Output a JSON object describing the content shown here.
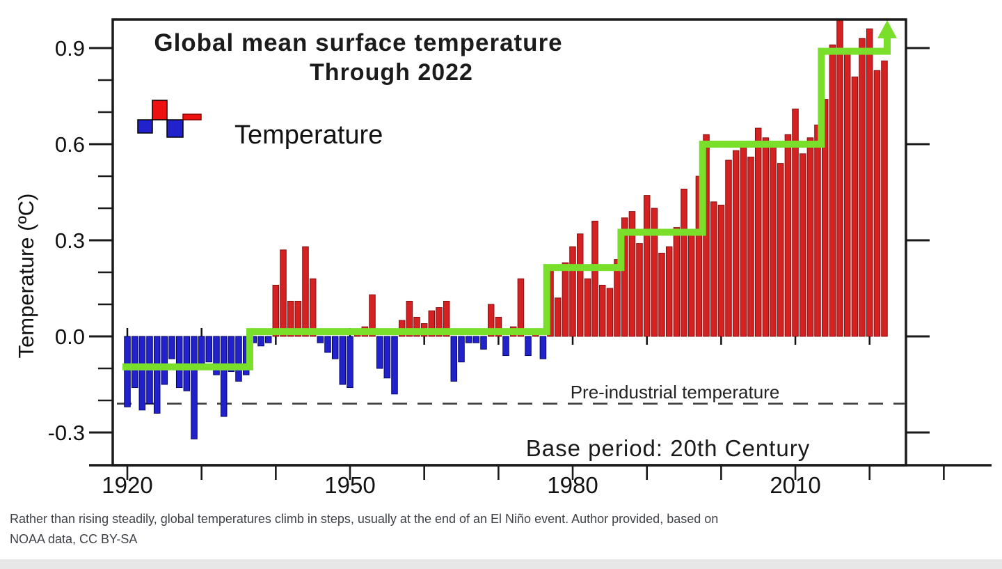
{
  "header": {
    "title_line1": "Global mean surface temperature",
    "title_line2": "Through 2022"
  },
  "legend": {
    "label": "Temperature"
  },
  "axes": {
    "y": {
      "axis_label": "Temperature  (ºC)",
      "major_ticks": [
        {
          "value": 0.9,
          "label": "0.9"
        },
        {
          "value": 0.6,
          "label": "0.6"
        },
        {
          "value": 0.3,
          "label": "0.3"
        },
        {
          "value": 0.0,
          "label": "0.0"
        },
        {
          "value": -0.3,
          "label": "-0.3"
        }
      ],
      "minor_tick_values": [
        0.8,
        0.7,
        0.5,
        0.4,
        0.2,
        0.1,
        -0.1,
        -0.2
      ]
    },
    "x": {
      "major_ticks": [
        {
          "value": 1920,
          "label": "1920"
        },
        {
          "value": 1950,
          "label": "1950"
        },
        {
          "value": 1980,
          "label": "1980"
        },
        {
          "value": 2010,
          "label": "2010"
        }
      ],
      "minor_tick_values": [
        1920,
        1930,
        1940,
        1950,
        1960,
        1970,
        1980,
        1990,
        2000,
        2010,
        2020,
        2030
      ],
      "zero_line_decade_ticks": [
        1920,
        1930,
        1940,
        1950,
        1960,
        1970,
        1980,
        1990,
        2000,
        2010,
        2020
      ]
    }
  },
  "annotations": {
    "pre_industrial": "Pre-industrial temperature",
    "base_period": "Base period: 20th Century"
  },
  "caption": {
    "line1": "Rather than rising steadily, global temperatures climb in steps, usually at the end of an El Niño event. Author provided, based on",
    "line2": "NOAA data, CC BY-SA"
  },
  "colors": {
    "positive_bar": "#d42222",
    "positive_bar_edge": "#7a0c0c",
    "negative_bar": "#2222cc",
    "negative_bar_edge": "#00005a",
    "step_line": "#79df2b",
    "dashed_line": "#3c3c3c",
    "axis": "#1a1a1a",
    "caption_text": "#3e4247",
    "bottom_strip": "#e7e7e7"
  },
  "chart_data": {
    "type": "bar",
    "title": "Global mean surface temperature Through 2022",
    "xlabel": "",
    "ylabel": "Temperature (ºC)",
    "x_start_year": 1920,
    "x_end_year": 2022,
    "ylim": [
      -0.4,
      0.985
    ],
    "xlim": [
      1918,
      2025
    ],
    "grid": false,
    "legend_position": "upper-left",
    "values": [
      -0.22,
      -0.16,
      -0.23,
      -0.21,
      -0.24,
      -0.15,
      -0.07,
      -0.16,
      -0.17,
      -0.32,
      -0.09,
      -0.08,
      -0.12,
      -0.25,
      -0.11,
      -0.14,
      -0.12,
      -0.02,
      -0.03,
      -0.02,
      0.16,
      0.27,
      0.11,
      0.11,
      0.28,
      0.18,
      -0.02,
      -0.05,
      -0.07,
      -0.15,
      -0.16,
      0.01,
      0.03,
      0.13,
      -0.1,
      -0.13,
      -0.18,
      0.05,
      0.11,
      0.06,
      0.04,
      0.08,
      0.09,
      0.11,
      -0.14,
      -0.08,
      -0.02,
      -0.02,
      -0.04,
      0.1,
      0.06,
      -0.06,
      0.03,
      0.18,
      -0.06,
      0.01,
      -0.07,
      0.21,
      0.12,
      0.23,
      0.28,
      0.32,
      0.18,
      0.36,
      0.16,
      0.15,
      0.24,
      0.37,
      0.39,
      0.29,
      0.44,
      0.4,
      0.26,
      0.28,
      0.34,
      0.46,
      0.32,
      0.5,
      0.63,
      0.42,
      0.41,
      0.55,
      0.58,
      0.59,
      0.56,
      0.65,
      0.62,
      0.59,
      0.54,
      0.63,
      0.71,
      0.57,
      0.62,
      0.66,
      0.74,
      0.91,
      1.0,
      0.89,
      0.81,
      0.93,
      0.96,
      0.83,
      0.86
    ],
    "step_line_segments": [
      {
        "from": 1920,
        "to": 1936,
        "level": -0.095
      },
      {
        "from": 1937,
        "to": 1976,
        "level": 0.015
      },
      {
        "from": 1977,
        "to": 1986,
        "level": 0.215
      },
      {
        "from": 1987,
        "to": 1997,
        "level": 0.325
      },
      {
        "from": 1998,
        "to": 2013,
        "level": 0.6
      },
      {
        "from": 2014,
        "to": 2022,
        "level": 0.89
      }
    ],
    "step_line_ends_with_up_arrow": true,
    "dashed_reference_line": {
      "value": -0.21,
      "label": "Pre-industrial temperature"
    }
  }
}
